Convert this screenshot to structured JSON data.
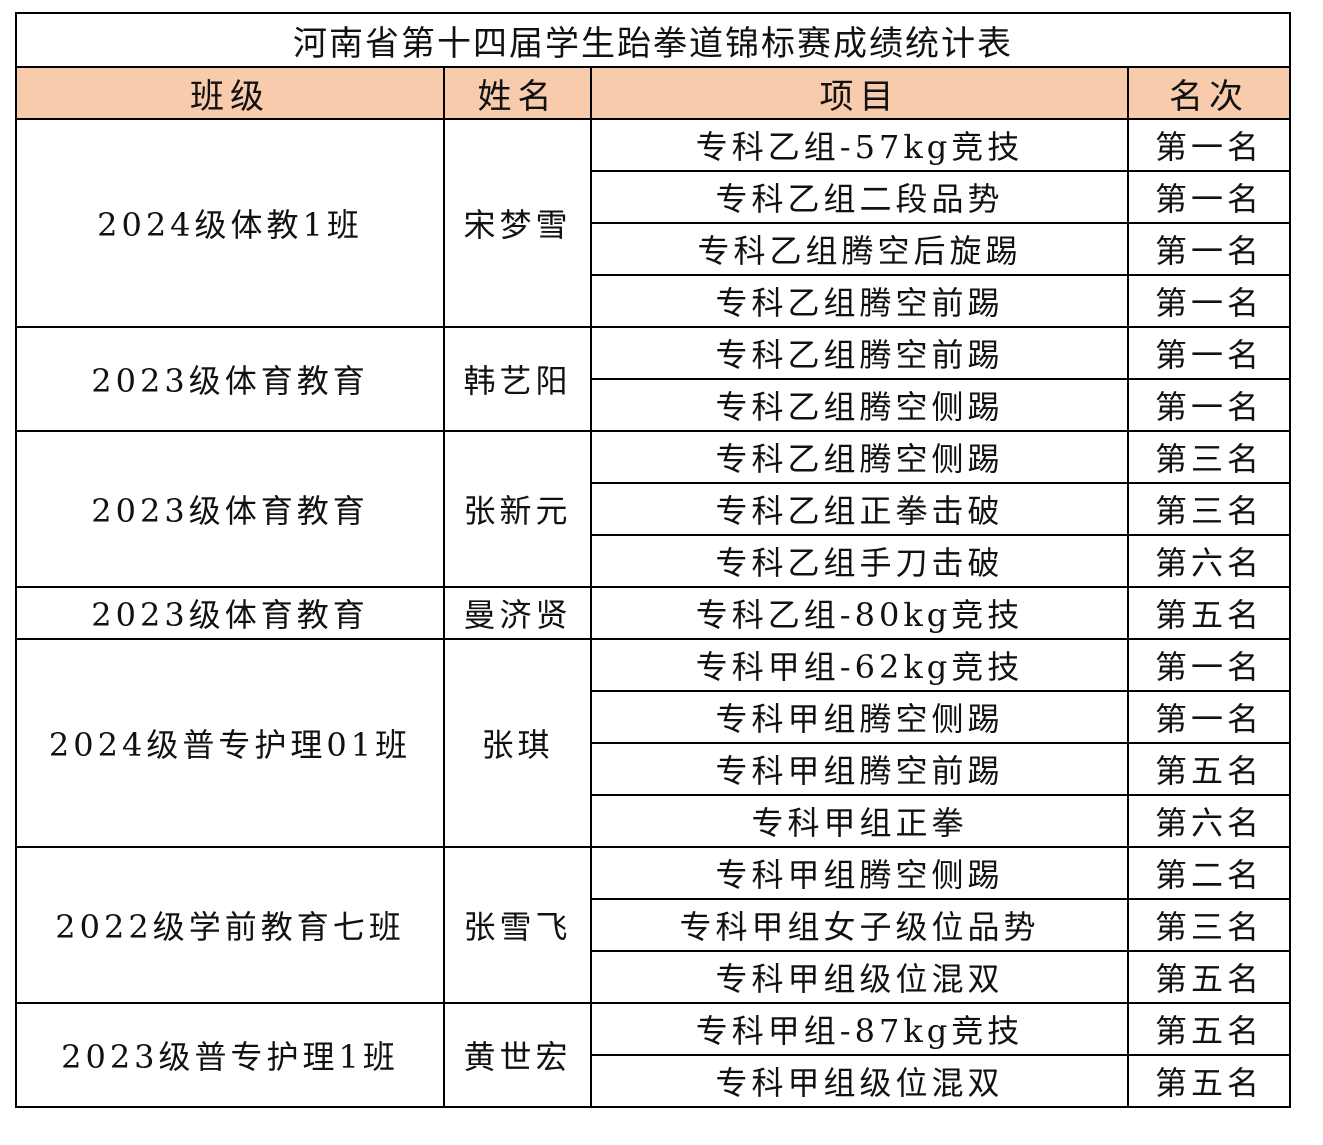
{
  "title": "河南省第十四届学生跆拳道锦标赛成绩统计表",
  "header": {
    "class": "班级",
    "name": "姓名",
    "event": "项目",
    "rank": "名次"
  },
  "colors": {
    "header_fill": "#f8cbad",
    "border": "#000000"
  },
  "groups": [
    {
      "class": "2024级体教1班",
      "name": "宋梦雪",
      "entries": [
        {
          "event": "专科乙组-57kg竞技",
          "rank": "第一名"
        },
        {
          "event": "专科乙组二段品势",
          "rank": "第一名"
        },
        {
          "event": "专科乙组腾空后旋踢",
          "rank": "第一名"
        },
        {
          "event": "专科乙组腾空前踢",
          "rank": "第一名"
        }
      ]
    },
    {
      "class": "2023级体育教育",
      "name": "韩艺阳",
      "entries": [
        {
          "event": "专科乙组腾空前踢",
          "rank": "第一名"
        },
        {
          "event": "专科乙组腾空侧踢",
          "rank": "第一名"
        }
      ]
    },
    {
      "class": "2023级体育教育",
      "name": "张新元",
      "entries": [
        {
          "event": "专科乙组腾空侧踢",
          "rank": "第三名"
        },
        {
          "event": "专科乙组正拳击破",
          "rank": "第三名"
        },
        {
          "event": "专科乙组手刀击破",
          "rank": "第六名"
        }
      ]
    },
    {
      "class": "2023级体育教育",
      "name": "曼济贤",
      "entries": [
        {
          "event": "专科乙组-80kg竞技",
          "rank": "第五名"
        }
      ]
    },
    {
      "class": "2024级普专护理01班",
      "name": "张琪",
      "entries": [
        {
          "event": "专科甲组-62kg竞技",
          "rank": "第一名"
        },
        {
          "event": "专科甲组腾空侧踢",
          "rank": "第一名"
        },
        {
          "event": "专科甲组腾空前踢",
          "rank": "第五名"
        },
        {
          "event": "专科甲组正拳",
          "rank": "第六名"
        }
      ]
    },
    {
      "class": "2022级学前教育七班",
      "name": "张雪飞",
      "entries": [
        {
          "event": "专科甲组腾空侧踢",
          "rank": "第二名"
        },
        {
          "event": "专科甲组女子级位品势",
          "rank": "第三名"
        },
        {
          "event": "专科甲组级位混双",
          "rank": "第五名"
        }
      ]
    },
    {
      "class": "2023级普专护理1班",
      "name": "黄世宏",
      "entries": [
        {
          "event": "专科甲组-87kg竞技",
          "rank": "第五名"
        },
        {
          "event": "专科甲组级位混双",
          "rank": "第五名"
        }
      ]
    }
  ]
}
